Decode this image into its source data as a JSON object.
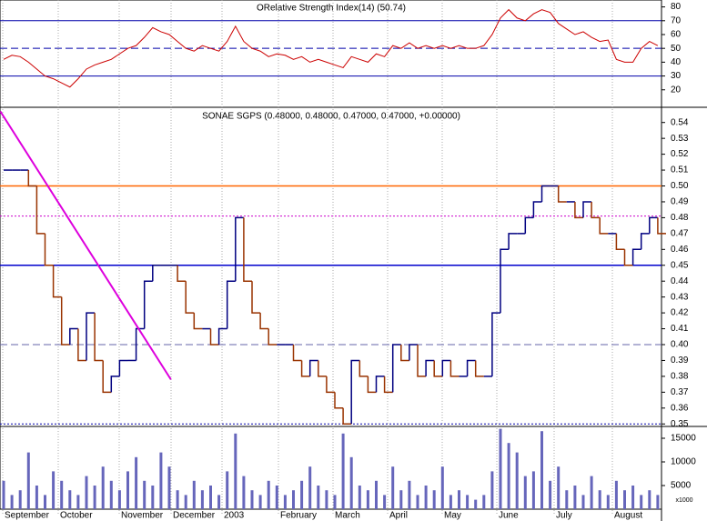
{
  "chart_data": [
    {
      "type": "line",
      "title": "ORelative Strength Index(14) (50.74)",
      "color": "#cc0000",
      "values": [
        42,
        45,
        44,
        40,
        35,
        30,
        28,
        25,
        22,
        28,
        35,
        38,
        40,
        42,
        46,
        50,
        52,
        58,
        65,
        62,
        60,
        55,
        50,
        48,
        52,
        50,
        48,
        55,
        66,
        55,
        50,
        48,
        44,
        46,
        45,
        42,
        44,
        40,
        42,
        40,
        38,
        36,
        44,
        42,
        40,
        46,
        44,
        52,
        50,
        54,
        50,
        52,
        50,
        52,
        50,
        52,
        50,
        50,
        52,
        60,
        72,
        78,
        72,
        70,
        75,
        78,
        76,
        68,
        64,
        60,
        62,
        58,
        55,
        56,
        42,
        40,
        40,
        50,
        55,
        52
      ],
      "ylim": [
        8,
        85
      ],
      "yticks": [
        20,
        30,
        40,
        50,
        60,
        70,
        80
      ],
      "levels": [
        {
          "value": 70,
          "style": "solid"
        },
        {
          "value": 50,
          "style": "dashed"
        },
        {
          "value": 30,
          "style": "solid"
        }
      ]
    },
    {
      "type": "step",
      "title": "SONAE SGPS (0.48000, 0.48000, 0.47000, 0.47000, +0.00000)",
      "up_color": "#000080",
      "down_color": "#993300",
      "values": [
        0.51,
        0.51,
        0.51,
        0.5,
        0.47,
        0.45,
        0.43,
        0.4,
        0.41,
        0.39,
        0.42,
        0.39,
        0.37,
        0.38,
        0.39,
        0.39,
        0.41,
        0.44,
        0.45,
        0.45,
        0.45,
        0.44,
        0.42,
        0.41,
        0.41,
        0.4,
        0.41,
        0.44,
        0.48,
        0.44,
        0.42,
        0.41,
        0.4,
        0.4,
        0.4,
        0.39,
        0.38,
        0.39,
        0.38,
        0.37,
        0.36,
        0.35,
        0.39,
        0.38,
        0.37,
        0.38,
        0.37,
        0.4,
        0.39,
        0.4,
        0.38,
        0.39,
        0.38,
        0.39,
        0.38,
        0.38,
        0.39,
        0.38,
        0.38,
        0.42,
        0.46,
        0.47,
        0.47,
        0.48,
        0.49,
        0.5,
        0.5,
        0.49,
        0.49,
        0.48,
        0.49,
        0.48,
        0.47,
        0.47,
        0.46,
        0.45,
        0.46,
        0.47,
        0.48,
        0.47
      ],
      "ylim": [
        0.349,
        0.549
      ],
      "yticks": [
        {
          "value": 0.35,
          "label": "0.35"
        },
        {
          "value": 0.36,
          "label": "0.36"
        },
        {
          "value": 0.37,
          "label": "0.37"
        },
        {
          "value": 0.38,
          "label": "0.38"
        },
        {
          "value": 0.39,
          "label": "0.39"
        },
        {
          "value": 0.4,
          "label": "0.40"
        },
        {
          "value": 0.41,
          "label": "0.41"
        },
        {
          "value": 0.42,
          "label": "0.42"
        },
        {
          "value": 0.43,
          "label": "0.43"
        },
        {
          "value": 0.44,
          "label": "0.44"
        },
        {
          "value": 0.45,
          "label": "0.45"
        },
        {
          "value": 0.46,
          "label": "0.46"
        },
        {
          "value": 0.47,
          "label": "0.47"
        },
        {
          "value": 0.48,
          "label": "0.48"
        },
        {
          "value": 0.49,
          "label": "0.49"
        },
        {
          "value": 0.5,
          "label": "0.50"
        },
        {
          "value": 0.51,
          "label": "0.51"
        },
        {
          "value": 0.52,
          "label": "0.52"
        },
        {
          "value": 0.53,
          "label": "0.53"
        },
        {
          "value": 0.54,
          "label": "0.54"
        }
      ],
      "hlines": [
        {
          "value": 0.5,
          "color": "#ff6600",
          "style": "solid"
        },
        {
          "value": 0.481,
          "color": "#cc00cc",
          "style": "dotted"
        },
        {
          "value": 0.45,
          "color": "#0000cc",
          "style": "solid"
        },
        {
          "value": 0.4,
          "color": "#6666aa",
          "style": "dashed"
        },
        {
          "value": 0.35,
          "color": "#0000aa",
          "style": "dotted"
        }
      ],
      "trendline": {
        "x": [
          -0.4,
          20.2
        ],
        "values": [
          0.547,
          0.378
        ],
        "color": "#dd00dd"
      }
    },
    {
      "type": "bar",
      "color": "#6666bb",
      "unit_label": "x1000",
      "values": [
        6000,
        3000,
        4000,
        12000,
        5000,
        3000,
        8000,
        6000,
        4000,
        3000,
        7000,
        5000,
        9000,
        6000,
        4000,
        8000,
        11000,
        6000,
        5000,
        12000,
        9000,
        4000,
        3000,
        6000,
        4000,
        5000,
        3000,
        8000,
        16000,
        7000,
        4000,
        3000,
        6000,
        5000,
        3000,
        4000,
        6000,
        9000,
        5000,
        4000,
        3000,
        16000,
        11000,
        5000,
        4000,
        6000,
        3000,
        9000,
        4000,
        6000,
        3000,
        5000,
        4000,
        9000,
        3000,
        4000,
        3000,
        2000,
        3000,
        8000,
        17000,
        14000,
        12000,
        7000,
        8000,
        16500,
        6000,
        9000,
        4000,
        5000,
        3000,
        7000,
        4000,
        3000,
        6000,
        4000,
        5000,
        3000,
        4000,
        3000
      ],
      "ylim": [
        0,
        17500
      ],
      "yticks": [
        5000,
        10000,
        15000
      ],
      "x_labels": [
        "September",
        "October",
        "November",
        "December",
        "2003",
        "February",
        "March",
        "April",
        "May",
        "June",
        "July",
        "August"
      ]
    }
  ]
}
